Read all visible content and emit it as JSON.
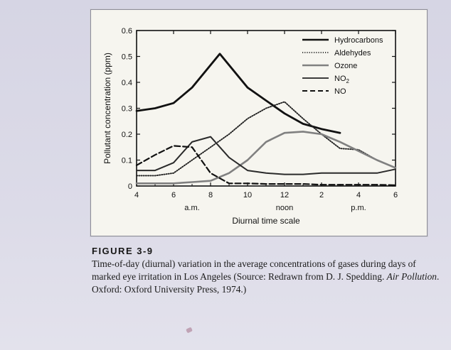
{
  "chart_data": {
    "type": "line",
    "xlabel": "Diurnal time scale",
    "ylabel": "Pollutant concentration (ppm)",
    "x_hours": [
      4,
      5,
      6,
      7,
      8,
      9,
      10,
      11,
      12,
      13,
      14,
      15,
      16,
      17,
      18
    ],
    "x_tick_labels": [
      "4",
      "6",
      "8",
      "10",
      "12",
      "2",
      "4",
      "6"
    ],
    "x_tick_hours": [
      4,
      6,
      8,
      10,
      12,
      14,
      16,
      18
    ],
    "x_period_labels": [
      {
        "text": "a.m.",
        "hour": 7
      },
      {
        "text": "noon",
        "hour": 12
      },
      {
        "text": "p.m.",
        "hour": 16
      }
    ],
    "ylim": [
      0,
      0.6
    ],
    "y_ticks": [
      0,
      0.1,
      0.2,
      0.3,
      0.4,
      0.5,
      0.6
    ],
    "y_tick_labels": [
      "0",
      "0.1",
      "0.2",
      "0.3",
      "0.4",
      "0.5",
      "0.6"
    ],
    "legend_position": "top-right",
    "series": [
      {
        "name": "Hydrocarbons",
        "style": "solid-thick",
        "color": "#111111",
        "points": [
          [
            4,
            0.29
          ],
          [
            5,
            0.3
          ],
          [
            6,
            0.32
          ],
          [
            7,
            0.38
          ],
          [
            8.5,
            0.51
          ],
          [
            10,
            0.38
          ],
          [
            11,
            0.33
          ],
          [
            12,
            0.28
          ],
          [
            13,
            0.24
          ],
          [
            14,
            0.22
          ],
          [
            15,
            0.205
          ]
        ]
      },
      {
        "name": "Aldehydes",
        "style": "dotted",
        "color": "#222222",
        "points": [
          [
            4,
            0.04
          ],
          [
            5,
            0.04
          ],
          [
            6,
            0.05
          ],
          [
            7,
            0.1
          ],
          [
            8,
            0.15
          ],
          [
            9,
            0.2
          ],
          [
            10,
            0.26
          ],
          [
            11,
            0.3
          ],
          [
            12,
            0.325
          ],
          [
            13,
            0.26
          ],
          [
            14,
            0.2
          ],
          [
            15,
            0.145
          ],
          [
            16,
            0.14
          ],
          [
            17,
            0.1
          ],
          [
            18,
            0.07
          ]
        ]
      },
      {
        "name": "Ozone",
        "style": "solid-gray",
        "color": "#808080",
        "points": [
          [
            4,
            0.01
          ],
          [
            5,
            0.01
          ],
          [
            6,
            0.01
          ],
          [
            7,
            0.015
          ],
          [
            8,
            0.02
          ],
          [
            9,
            0.05
          ],
          [
            10,
            0.1
          ],
          [
            11,
            0.17
          ],
          [
            12,
            0.205
          ],
          [
            13,
            0.21
          ],
          [
            14,
            0.2
          ],
          [
            15,
            0.17
          ],
          [
            16,
            0.135
          ],
          [
            17,
            0.1
          ],
          [
            18,
            0.07
          ]
        ]
      },
      {
        "name": "NO2",
        "style": "solid",
        "color": "#2a2a2a",
        "points": [
          [
            4,
            0.06
          ],
          [
            5,
            0.06
          ],
          [
            6,
            0.09
          ],
          [
            7,
            0.17
          ],
          [
            8,
            0.19
          ],
          [
            9,
            0.11
          ],
          [
            10,
            0.06
          ],
          [
            11,
            0.05
          ],
          [
            12,
            0.045
          ],
          [
            13,
            0.045
          ],
          [
            14,
            0.05
          ],
          [
            15,
            0.05
          ],
          [
            16,
            0.05
          ],
          [
            17,
            0.05
          ],
          [
            18,
            0.065
          ]
        ]
      },
      {
        "name": "NO",
        "style": "dashed",
        "color": "#111111",
        "points": [
          [
            4,
            0.08
          ],
          [
            5,
            0.12
          ],
          [
            6,
            0.155
          ],
          [
            7,
            0.15
          ],
          [
            8,
            0.05
          ],
          [
            9,
            0.01
          ],
          [
            10,
            0.01
          ],
          [
            11,
            0.008
          ],
          [
            12,
            0.008
          ],
          [
            13,
            0.008
          ],
          [
            14,
            0.005
          ],
          [
            15,
            0.005
          ],
          [
            16,
            0.005
          ],
          [
            17,
            0.005
          ],
          [
            18,
            0.003
          ]
        ]
      }
    ]
  },
  "legend": {
    "hydrocarbons": "Hydrocarbons",
    "aldehydes": "Aldehydes",
    "ozone": "Ozone",
    "no2_main": "NO",
    "no2_sub": "2",
    "no": "NO"
  },
  "caption": {
    "label": "FIGURE 3-9",
    "text_1": "Time-of-day (diurnal) variation in the average concentrations of gases during days of marked eye irritation in Los Angeles (Source: Redrawn from D. J. Spedding. ",
    "text_italic": "Air Pollution",
    "text_2": ". Oxford: Oxford University Press, 1974.)"
  },
  "colors": {
    "figure_bg": "#f6f5ef",
    "page_bg": "#d9d8e6",
    "ink": "#111111",
    "ozone_gray": "#808080"
  }
}
